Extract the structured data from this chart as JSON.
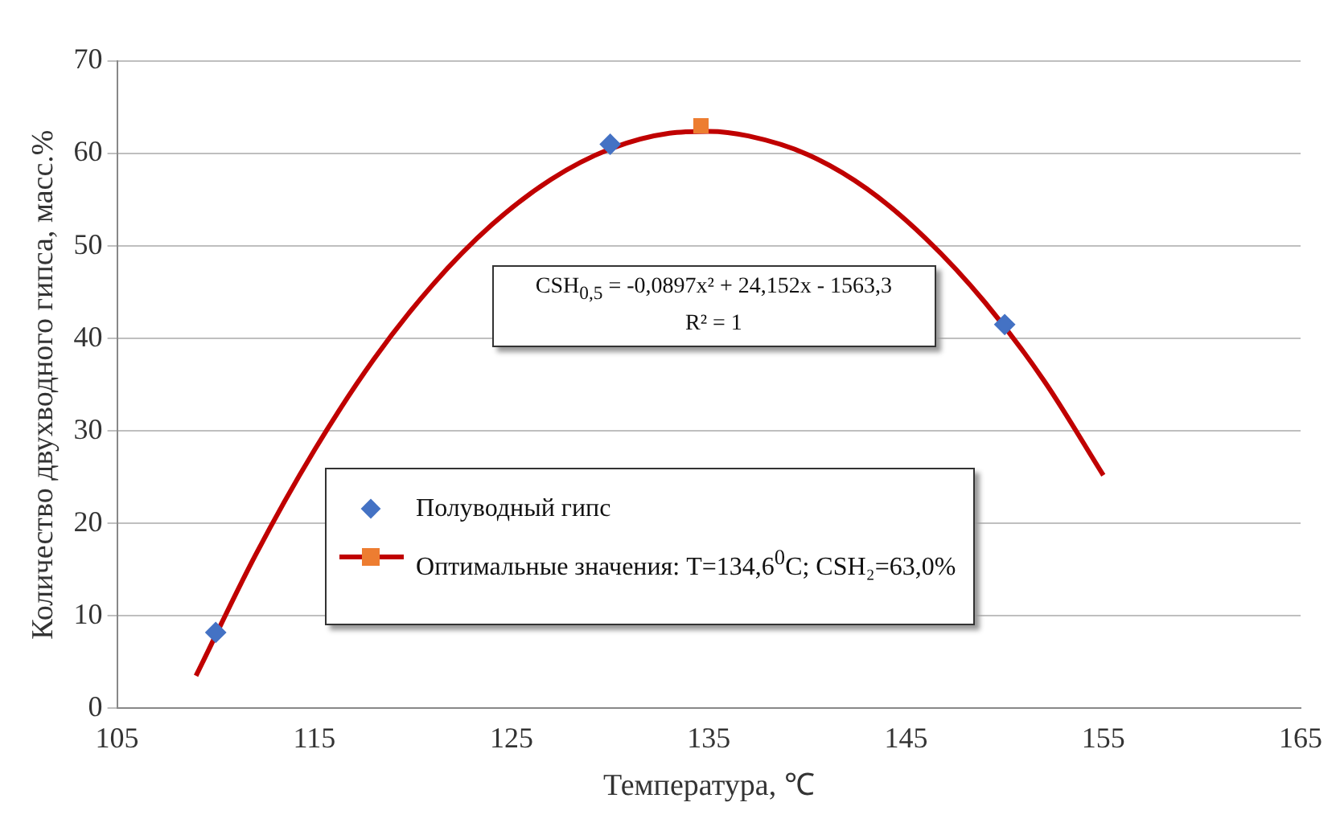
{
  "chart_data": {
    "type": "scatter",
    "xlabel": "Температура, ℃",
    "ylabel": "Количество двухводного гипса, масс.%",
    "annotations": [
      "CSH$_{0,5}$ = -0,0897x² + 24,152x - 1563,3",
      "R² = 1"
    ],
    "xlim": [
      105,
      165
    ],
    "xticks": [
      105,
      115,
      125,
      135,
      145,
      155,
      165
    ],
    "ylim": [
      0,
      70
    ],
    "yticks": [
      0,
      10,
      20,
      30,
      40,
      50,
      60,
      70
    ],
    "grid": "y",
    "legend": "bottom",
    "series": [
      {
        "name": "Полуводный гипс",
        "type": "scatter",
        "marker": "diamond",
        "color": "#4472c4",
        "x": [
          110,
          130,
          150
        ],
        "values": [
          8.2,
          61,
          41.5
        ]
      },
      {
        "type": "line",
        "marker": "none",
        "color": "#c00000",
        "x": [
          109,
          112,
          115,
          118,
          121,
          124,
          127,
          130,
          133,
          135,
          137,
          140,
          143,
          146,
          149,
          152,
          155
        ],
        "values": [
          3.5,
          16.5,
          27.9,
          37.7,
          45.8,
          52.3,
          57.2,
          60.5,
          62.2,
          62.4,
          61.9,
          59.9,
          56.2,
          50.8,
          43.9,
          35.4,
          25.2
        ]
      },
      {
        "name": "Оптимальные значения: T=134,6$^{0}$C; CSH₂=63,0%",
        "type": "scatter",
        "marker": "square",
        "color": "#ed7d31",
        "x": [
          134.6
        ],
        "values": [
          63.0
        ]
      }
    ]
  }
}
